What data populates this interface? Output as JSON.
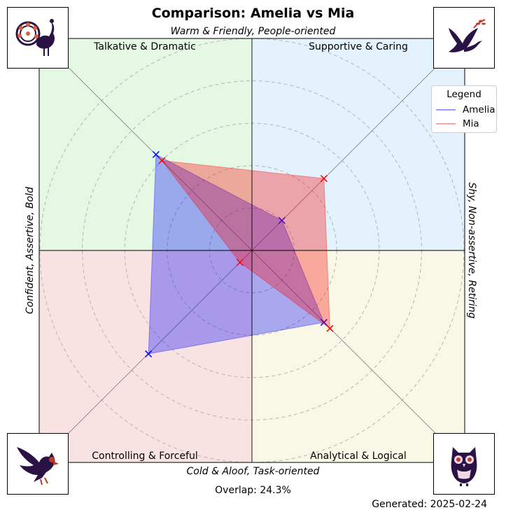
{
  "title": "Comparison: Amelia vs Mia",
  "axes": {
    "top": "Warm & Friendly, People-oriented",
    "bottom": "Cold & Aloof, Task-oriented",
    "left": "Confident, Assertive, Bold",
    "right": "Shy, Non-assertive, Retiring"
  },
  "quadrants": {
    "top_left": "Talkative & Dramatic",
    "top_right": "Supportive & Caring",
    "bottom_left": "Controlling & Forceful",
    "bottom_right": "Analytical & Logical"
  },
  "icons": {
    "top_left": "peacock-icon",
    "top_right": "dove-icon",
    "bottom_left": "eagle-icon",
    "bottom_right": "owl-icon"
  },
  "legend": {
    "title": "Legend",
    "items": [
      "Amelia",
      "Mia"
    ]
  },
  "overlap_text": "Overlap: 24.3%",
  "generated_text": "Generated: 2025-02-24",
  "colors": {
    "amelia": "#0000ff",
    "mia": "#ff0000",
    "q_top_left": "#e4f8e4",
    "q_top_right": "#e3f2fc",
    "q_bottom_left": "#f9e2e2",
    "q_bottom_right": "#f9f8e6",
    "icon": "#2a1245"
  },
  "chart_data": {
    "type": "radar",
    "axes_order": [
      "Supportive & Caring",
      "Talkative & Dramatic",
      "Controlling & Forceful",
      "Analytical & Logical"
    ],
    "range": [
      0,
      1
    ],
    "series": [
      {
        "name": "Amelia",
        "values": [
          0.2,
          0.64,
          0.69,
          0.48
        ]
      },
      {
        "name": "Mia",
        "values": [
          0.48,
          0.6,
          0.08,
          0.52
        ]
      }
    ]
  }
}
